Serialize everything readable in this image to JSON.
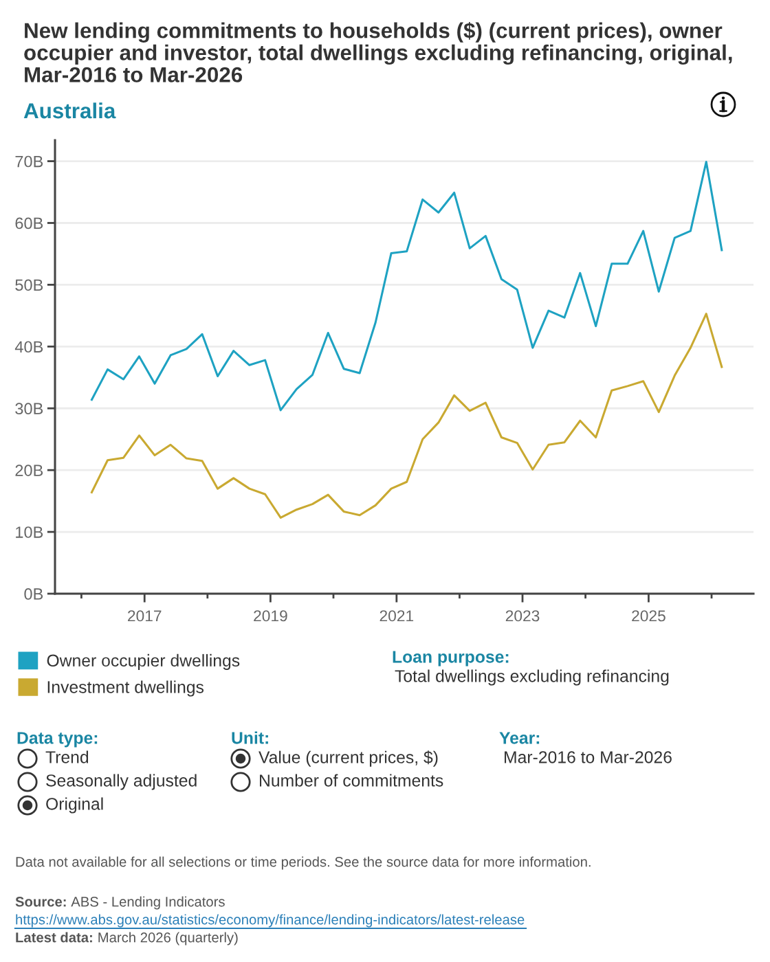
{
  "chart_data": {
    "type": "line",
    "title": "New lending commitments to households ($) (current prices), owner occupier and investor, total dwellings excluding refinancing, original, Mar-2016 to Mar-2026",
    "subtitle": "Australia",
    "x": [
      "2016-03",
      "2016-06",
      "2016-09",
      "2016-12",
      "2017-03",
      "2017-06",
      "2017-09",
      "2017-12",
      "2018-03",
      "2018-06",
      "2018-09",
      "2018-12",
      "2019-03",
      "2019-06",
      "2019-09",
      "2019-12",
      "2020-03",
      "2020-06",
      "2020-09",
      "2020-12",
      "2021-03",
      "2021-06",
      "2021-09",
      "2021-12",
      "2022-03",
      "2022-06",
      "2022-09",
      "2022-12",
      "2023-03",
      "2023-06",
      "2023-09",
      "2023-12",
      "2024-03",
      "2024-06",
      "2024-09",
      "2024-12",
      "2025-03",
      "2025-06",
      "2025-09",
      "2025-12",
      "2026-03"
    ],
    "series": [
      {
        "name": "Owner occupier dwellings",
        "color": "#1ea2c2",
        "values": [
          31.4,
          36.3,
          34.7,
          38.4,
          34.0,
          38.6,
          39.6,
          42.0,
          35.2,
          39.3,
          37.0,
          37.8,
          29.7,
          33.1,
          35.4,
          42.2,
          36.4,
          35.7,
          43.9,
          55.1,
          55.4,
          63.8,
          61.7,
          64.9,
          55.9,
          57.9,
          50.9,
          49.2,
          39.8,
          45.8,
          44.7,
          51.9,
          43.3,
          53.4,
          53.4,
          58.7,
          48.9,
          57.6,
          58.7,
          69.9,
          55.6
        ]
      },
      {
        "name": "Investment dwellings",
        "color": "#c9a931",
        "values": [
          16.4,
          21.6,
          22.0,
          25.6,
          22.4,
          24.1,
          21.9,
          21.5,
          17.0,
          18.7,
          17.0,
          16.1,
          12.3,
          13.6,
          14.5,
          16.0,
          13.3,
          12.7,
          14.3,
          17.0,
          18.1,
          25.0,
          27.7,
          32.1,
          29.6,
          30.9,
          25.3,
          24.4,
          20.1,
          24.1,
          24.5,
          28.0,
          25.3,
          32.9,
          33.6,
          34.4,
          29.4,
          35.3,
          39.8,
          45.3,
          36.7
        ]
      }
    ],
    "xlim": [
      "2015-08",
      "2026-09"
    ],
    "xticks": [
      {
        "value": "2016",
        "label": null
      },
      "2017",
      {
        "value": "2018",
        "label": null
      },
      "2019",
      {
        "value": "2020",
        "label": null
      },
      "2021",
      {
        "value": "2022",
        "label": null
      },
      "2023",
      {
        "value": "2024",
        "label": null
      },
      "2025",
      {
        "value": "2026",
        "label": null
      }
    ],
    "ylim": [
      0,
      73.4
    ],
    "yticks": [
      {
        "value": 0,
        "label": "0B"
      },
      {
        "value": 10,
        "label": "10B"
      },
      {
        "value": 20,
        "label": "20B"
      },
      {
        "value": 30,
        "label": "30B"
      },
      {
        "value": 40,
        "label": "40B"
      },
      {
        "value": 50,
        "label": "50B"
      },
      {
        "value": 60,
        "label": "60B"
      },
      {
        "value": 70,
        "label": "70B"
      }
    ],
    "grid": "y",
    "legend": "bottom",
    "annotations": [
      "Loan purpose:",
      "Total dwellings excluding refinancing",
      "Data type:",
      "Trend",
      "Seasonally adjusted",
      "Original",
      "Unit:",
      "Value (current prices, $)",
      "Number of commitments",
      "Year:",
      "Mar-2016 to Mar-2026",
      "Data not available for all selections or time periods. See the source data for more information.",
      "Source:",
      "ABS - Lending Indicators",
      "https://www.abs.gov.au/statistics/economy/finance/lending-indicators/latest-release",
      "Latest data:",
      "March 2026 (quarterly)"
    ]
  }
}
